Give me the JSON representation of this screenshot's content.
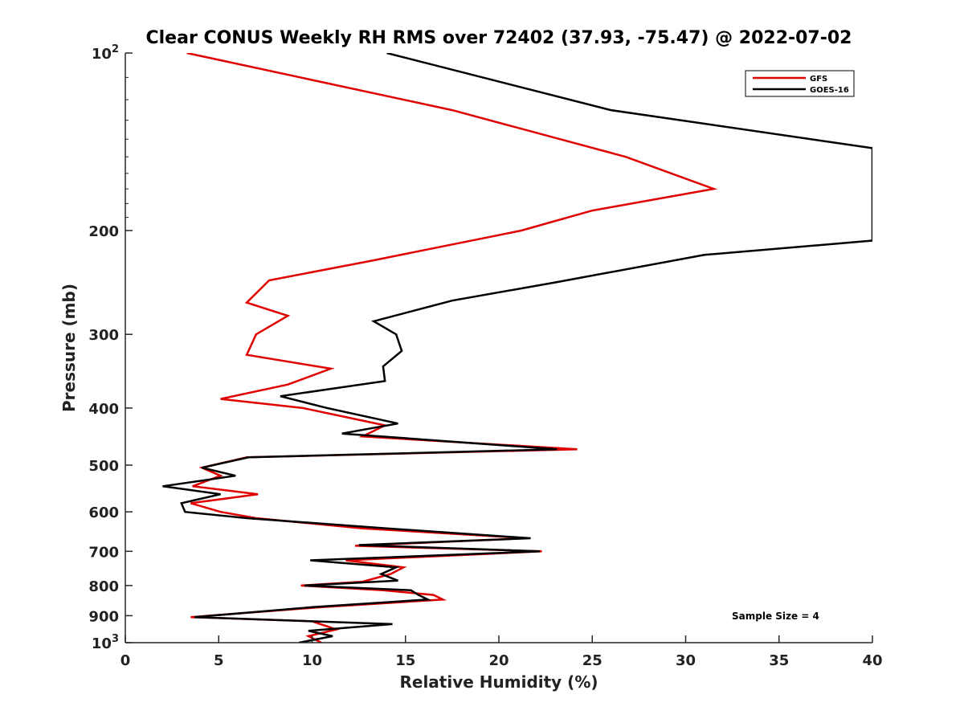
{
  "chart_data": {
    "type": "line",
    "title": "Clear CONUS Weekly RH RMS over 72402 (37.93, -75.47) @ 2022-07-02",
    "xlabel": "Relative Humidity (%)",
    "ylabel": "Pressure (mb)",
    "xlim": [
      0,
      40
    ],
    "ylim": [
      100,
      1000
    ],
    "yscale": "log",
    "y_reversed": true,
    "grid": false,
    "legend_position": "top-right",
    "annotation": "Sample Size = 4",
    "x_ticks": [
      "0",
      "5",
      "10",
      "15",
      "20",
      "25",
      "30",
      "35",
      "40"
    ],
    "y_ticks": [
      {
        "value": 100,
        "base": "10",
        "exp": "2"
      },
      {
        "value": 200,
        "label": "200"
      },
      {
        "value": 300,
        "label": "300"
      },
      {
        "value": 400,
        "label": "400"
      },
      {
        "value": 500,
        "label": "500"
      },
      {
        "value": 600,
        "label": "600"
      },
      {
        "value": 700,
        "label": "700"
      },
      {
        "value": 800,
        "label": "800"
      },
      {
        "value": 900,
        "label": "900"
      },
      {
        "value": 1000,
        "base": "10",
        "exp": "3"
      }
    ],
    "series": [
      {
        "name": "GFS",
        "color": "#e00000",
        "points": [
          [
            3.3,
            100
          ],
          [
            17.5,
            125
          ],
          [
            26.8,
            150
          ],
          [
            31.5,
            170
          ],
          [
            25.0,
            185
          ],
          [
            21.2,
            200
          ],
          [
            13.2,
            225
          ],
          [
            7.7,
            243
          ],
          [
            6.5,
            265
          ],
          [
            8.7,
            279
          ],
          [
            7.0,
            300
          ],
          [
            6.5,
            325
          ],
          [
            11.0,
            343
          ],
          [
            8.7,
            365
          ],
          [
            5.1,
            386
          ],
          [
            9.5,
            400
          ],
          [
            13.9,
            428
          ],
          [
            12.7,
            447
          ],
          [
            24.2,
            470
          ],
          [
            6.5,
            485
          ],
          [
            4.1,
            505
          ],
          [
            5.1,
            521
          ],
          [
            3.6,
            543
          ],
          [
            7.1,
            560
          ],
          [
            3.5,
            580
          ],
          [
            5.1,
            600
          ],
          [
            7.0,
            615
          ],
          [
            12.7,
            640
          ],
          [
            21.5,
            665
          ],
          [
            12.3,
            685
          ],
          [
            22.3,
            700
          ],
          [
            11.8,
            725
          ],
          [
            14.9,
            745
          ],
          [
            14.2,
            765
          ],
          [
            12.7,
            788
          ],
          [
            9.4,
            800
          ],
          [
            13.8,
            815
          ],
          [
            16.5,
            830
          ],
          [
            17.0,
            845
          ],
          [
            10.6,
            870
          ],
          [
            3.5,
            905
          ],
          [
            10.0,
            920
          ],
          [
            11.3,
            950
          ],
          [
            9.8,
            975
          ],
          [
            10.5,
            1000
          ]
        ]
      },
      {
        "name": "GOES-16",
        "color": "#000000",
        "points": [
          [
            14.0,
            100
          ],
          [
            26.0,
            125
          ],
          [
            40.0,
            145
          ],
          [
            40.0,
            208
          ],
          [
            31.0,
            220
          ],
          [
            23.0,
            245
          ],
          [
            17.5,
            263
          ],
          [
            13.3,
            285
          ],
          [
            14.5,
            300
          ],
          [
            14.8,
            320
          ],
          [
            13.8,
            340
          ],
          [
            13.9,
            360
          ],
          [
            8.3,
            382
          ],
          [
            10.8,
            400
          ],
          [
            14.6,
            425
          ],
          [
            11.6,
            442
          ],
          [
            23.1,
            470
          ],
          [
            6.6,
            485
          ],
          [
            4.1,
            505
          ],
          [
            5.9,
            521
          ],
          [
            2.0,
            543
          ],
          [
            5.1,
            560
          ],
          [
            3.0,
            580
          ],
          [
            3.2,
            600
          ],
          [
            6.5,
            615
          ],
          [
            14.0,
            640
          ],
          [
            21.7,
            665
          ],
          [
            12.5,
            683
          ],
          [
            22.2,
            700
          ],
          [
            9.9,
            725
          ],
          [
            14.5,
            745
          ],
          [
            13.7,
            765
          ],
          [
            14.6,
            785
          ],
          [
            9.6,
            800
          ],
          [
            15.3,
            815
          ],
          [
            15.7,
            830
          ],
          [
            16.2,
            845
          ],
          [
            10.1,
            870
          ],
          [
            3.7,
            905
          ],
          [
            14.3,
            930
          ],
          [
            9.8,
            955
          ],
          [
            11.1,
            975
          ],
          [
            9.3,
            1000
          ]
        ]
      }
    ]
  }
}
